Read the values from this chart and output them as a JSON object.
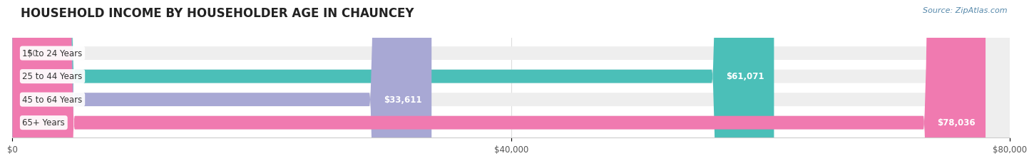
{
  "title": "HOUSEHOLD INCOME BY HOUSEHOLDER AGE IN CHAUNCEY",
  "source_text": "Source: ZipAtlas.com",
  "categories": [
    "15 to 24 Years",
    "25 to 44 Years",
    "45 to 64 Years",
    "65+ Years"
  ],
  "values": [
    0,
    61071,
    33611,
    78036
  ],
  "bar_colors": [
    "#c9a8d4",
    "#4bbfb8",
    "#a8a8d4",
    "#f07ab0"
  ],
  "bar_bg_color": "#eeeeee",
  "value_labels": [
    "$0",
    "$61,071",
    "$33,611",
    "$78,036"
  ],
  "xlim": [
    0,
    80000
  ],
  "xticks": [
    0,
    40000,
    80000
  ],
  "xtick_labels": [
    "$0",
    "$40,000",
    "$80,000"
  ],
  "fig_bg_color": "#ffffff",
  "bar_height": 0.58,
  "title_fontsize": 12,
  "label_fontsize": 8.5,
  "value_fontsize": 8.5,
  "source_fontsize": 8
}
